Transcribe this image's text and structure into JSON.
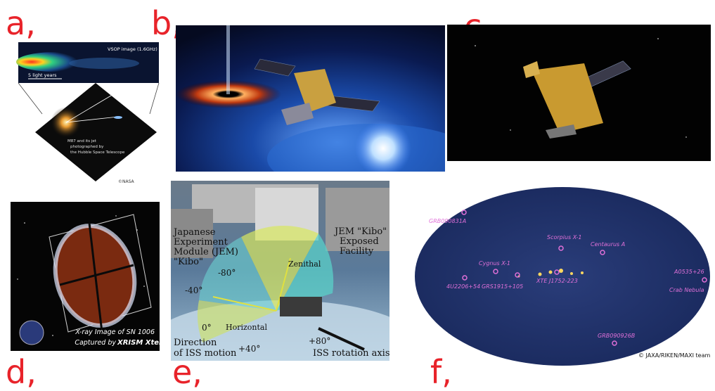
{
  "labels": {
    "a": "a,",
    "b": "b,",
    "c": "c,",
    "d": "d,",
    "e": "e,",
    "f": "f,"
  },
  "panel_a": {
    "vsop_caption": "VSOP image (1.6GHz)",
    "scale_bar": "5 light years",
    "hubble_caption_1": "M87 and its jet",
    "hubble_caption_2": "photographed by",
    "hubble_caption_3": "the Hubble Space Telescope",
    "credit": "©NASA"
  },
  "panel_d": {
    "caption_1": "X-ray Image of SN 1006",
    "caption_2_prefix": "Captured by",
    "caption_2_brand": "XRISM Xtend"
  },
  "panel_e": {
    "jem_1": "Japanese",
    "jem_2": "Experiment",
    "jem_3": "Module (JEM)",
    "jem_4": "\"Kibo\"",
    "exp_1": "JEM \"Kibo\"",
    "exp_2": "Exposed",
    "exp_3": "Facility",
    "zenithal": "Zenithal",
    "horizontal": "Horizontal",
    "deg_m80": "-80°",
    "deg_m40": "-40°",
    "deg_0": "0°",
    "deg_p40": "+40°",
    "deg_p80": "+80°",
    "direction_1": "Direction",
    "direction_2": "of ISS motion",
    "rotation_axis": "ISS rotation axis"
  },
  "panel_f": {
    "sources": {
      "grb090831a": "GRB090831A",
      "scorpius": "Scorpius X-1",
      "centaurus": "Centaurus A",
      "cygnus": "Cygnus X-1",
      "u2206": "4U2206+54",
      "grs1915": "GRS1915+105",
      "xte": "XTE J1752-223",
      "a0535": "A0535+26",
      "crab": "Crab Nebula",
      "grb090926b": "GRB090926B"
    },
    "credit": "©  JAXA/RIKEN/MAXI team"
  },
  "colors": {
    "label_red": "#e8232a",
    "maxi_label": "#e070d8",
    "sky_blue": "#1e2f6a"
  }
}
